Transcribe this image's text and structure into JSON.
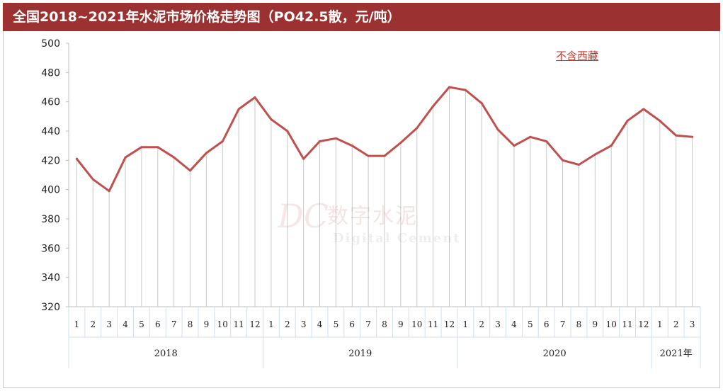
{
  "title": "全国2018~2021年水泥市场价格走势图（PO42.5散，元/吨）",
  "note": "不含西藏",
  "watermark": {
    "logo": "DC",
    "name_cn": "数字水泥",
    "name_en": "Digital Cement"
  },
  "colors": {
    "title_bg": "#9b3131",
    "line": "#c0504d",
    "note": "#c0392b"
  },
  "chart_data": {
    "type": "line",
    "title": "全国2018~2021年水泥市场价格走势图（PO42.5散，元/吨）",
    "xlabel": "",
    "ylabel": "",
    "ylim": [
      320,
      500
    ],
    "yticks": [
      320,
      340,
      360,
      380,
      400,
      420,
      440,
      460,
      480,
      500
    ],
    "grid": "vertical drop lines",
    "legend": "none",
    "years": [
      {
        "label": "2018",
        "months": 12
      },
      {
        "label": "2019",
        "months": 12
      },
      {
        "label": "2020",
        "months": 12
      },
      {
        "label": "2021年",
        "months": 3
      }
    ],
    "categories": [
      "1",
      "2",
      "3",
      "4",
      "5",
      "6",
      "7",
      "8",
      "9",
      "10",
      "11",
      "12",
      "1",
      "2",
      "3",
      "4",
      "5",
      "6",
      "7",
      "8",
      "9",
      "10",
      "11",
      "12",
      "1",
      "2",
      "3",
      "4",
      "5",
      "6",
      "7",
      "8",
      "9",
      "10",
      "11",
      "12",
      "1",
      "2",
      "3"
    ],
    "values": [
      421,
      407,
      399,
      422,
      429,
      429,
      422,
      413,
      425,
      433,
      455,
      463,
      448,
      440,
      421,
      433,
      435,
      430,
      423,
      423,
      432,
      442,
      457,
      470,
      468,
      459,
      441,
      430,
      436,
      433,
      420,
      417,
      424,
      430,
      447,
      455,
      447,
      437,
      436
    ]
  }
}
